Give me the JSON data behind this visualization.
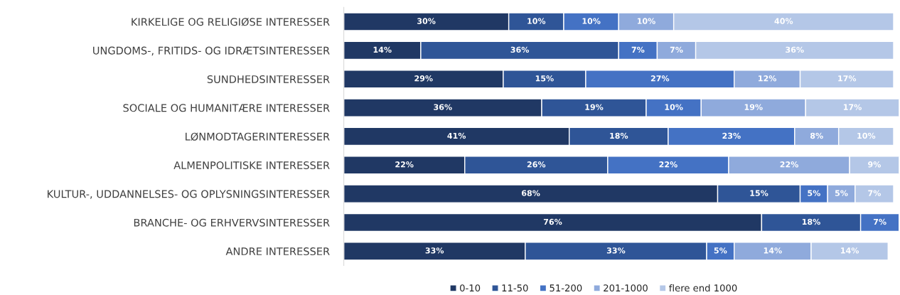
{
  "chart_data": {
    "type": "bar",
    "orientation": "horizontal",
    "stacked": true,
    "legend": "bottom",
    "grid": false,
    "tick_labels": "y",
    "categories": [
      "KIRKELIGE OG RELIGIØSE INTERESSER",
      "UNGDOMS-, FRITIDS- OG IDRÆTSINTERESSER",
      "SUNDHEDSINTERESSER",
      "SOCIALE OG HUMANITÆRE INTERESSER",
      "LØNMODTAGERINTERESSER",
      "ALMENPOLITISKE INTERESSER",
      "KULTUR-, UDDANNELSES- OG OPLYSNINGSINTERESSER",
      "BRANCHE- OG ERHVERVSINTERESSER",
      "ANDRE INTERESSER"
    ],
    "series": [
      {
        "name": "0-10",
        "color": "#203864",
        "values": [
          30,
          14,
          29,
          36,
          41,
          22,
          68,
          76,
          33
        ],
        "value_labels": [
          "30%",
          "14%",
          "29%",
          "36%",
          "41%",
          "22%",
          "68%",
          "76%",
          "33%"
        ]
      },
      {
        "name": "11-50",
        "color": "#2f5597",
        "values": [
          10,
          36,
          15,
          19,
          18,
          26,
          15,
          18,
          33
        ],
        "value_labels": [
          "10%",
          "36%",
          "15%",
          "19%",
          "18%",
          "26%",
          "15%",
          "18%",
          "33%"
        ]
      },
      {
        "name": "51-200",
        "color": "#4472c4",
        "values": [
          10,
          7,
          27,
          10,
          23,
          22,
          5,
          7,
          5
        ],
        "value_labels": [
          "10%",
          "7%",
          "27%",
          "10%",
          "23%",
          "22%",
          "5%",
          "7%",
          "5%"
        ]
      },
      {
        "name": "201-1000",
        "color": "#8faadc",
        "values": [
          10,
          7,
          12,
          19,
          8,
          22,
          5,
          null,
          14
        ],
        "value_labels": [
          "10%",
          "7%",
          "12%",
          "19%",
          "8%",
          "22%",
          "5%",
          null,
          "14%"
        ]
      },
      {
        "name": "flere end 1000",
        "color": "#b4c7e7",
        "values": [
          40,
          36,
          17,
          17,
          10,
          9,
          7,
          null,
          14
        ],
        "value_labels": [
          "40%",
          "36%",
          "17%",
          "17%",
          "10%",
          "9%",
          "7%",
          null,
          "14%"
        ]
      }
    ]
  }
}
